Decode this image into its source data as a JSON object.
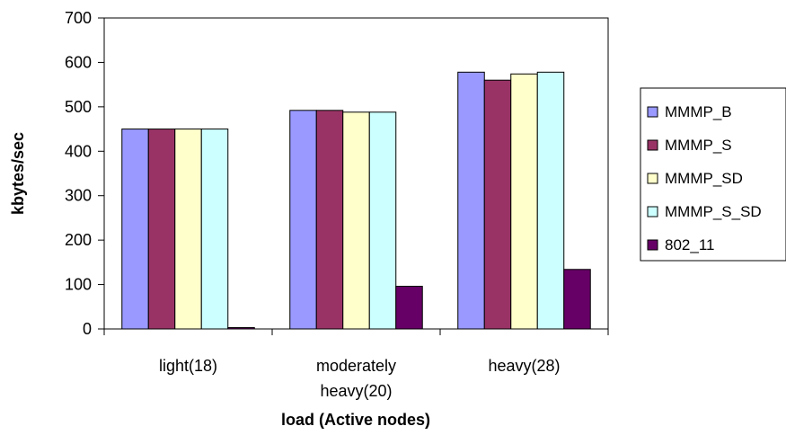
{
  "chart_data": {
    "type": "bar",
    "title": "",
    "xlabel": "load (Active nodes)",
    "ylabel": "kbytes/sec",
    "ylim": [
      0,
      700
    ],
    "yticks": [
      0,
      100,
      200,
      300,
      400,
      500,
      600,
      700
    ],
    "grid": false,
    "legend_position": "right",
    "categories": [
      [
        "light(18)"
      ],
      [
        "moderately",
        "heavy(20)"
      ],
      [
        "heavy(28)"
      ]
    ],
    "series": [
      {
        "name": "MMMP_B",
        "color": "#9999FF",
        "values": [
          450,
          492,
          578
        ]
      },
      {
        "name": "MMMP_S",
        "color": "#993366",
        "values": [
          450,
          492,
          560
        ]
      },
      {
        "name": "MMMP_SD",
        "color": "#FFFFCC",
        "values": [
          450,
          488,
          574
        ]
      },
      {
        "name": "MMMP_S_SD",
        "color": "#CCFFFF",
        "values": [
          450,
          488,
          578
        ]
      },
      {
        "name": "802_11",
        "color": "#660066",
        "values": [
          3,
          96,
          134
        ]
      }
    ]
  }
}
